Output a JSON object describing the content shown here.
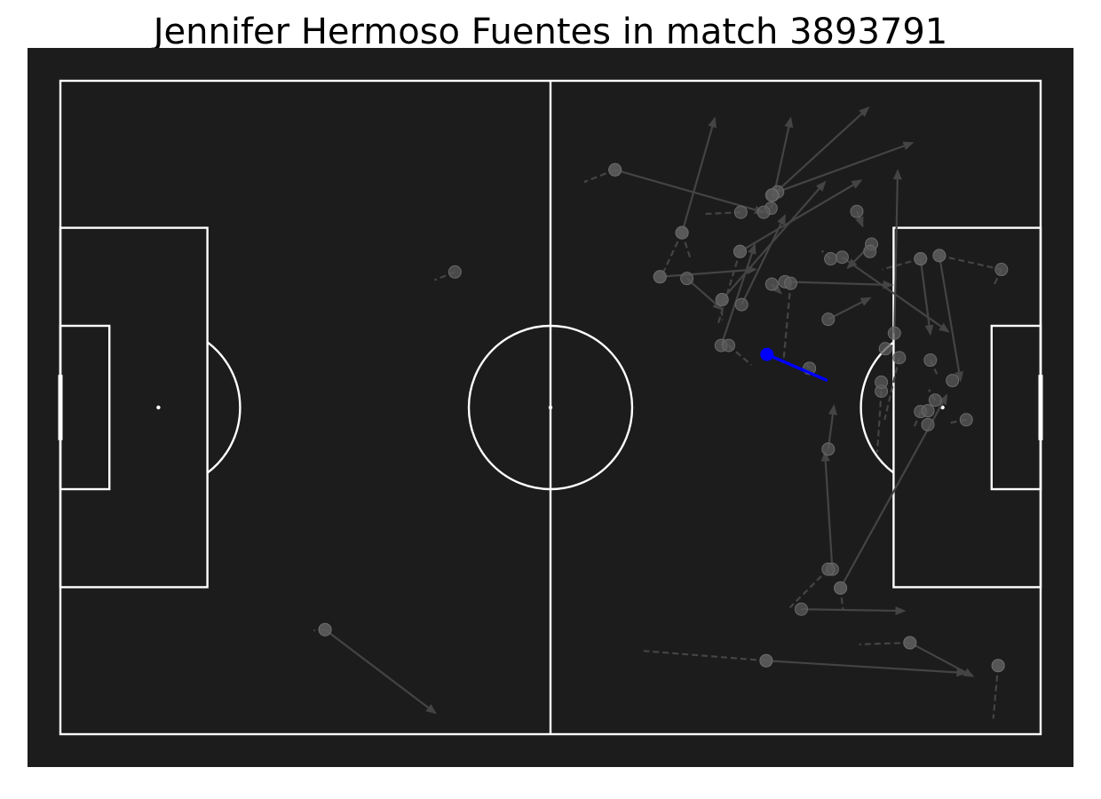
{
  "title": "Jennifer Hermoso Fuentes in match 3893791",
  "colors": {
    "pitch_background": "#1c1c1c",
    "pitch_lines": "#ffffff",
    "highlight_pass": "#0000ff",
    "other_actions": "#5a5a5a",
    "page_background": "#ffffff"
  },
  "chart_data": {
    "type": "scatter",
    "title": "Jennifer Hermoso Fuentes in match 3893791",
    "pitch": {
      "length": 120,
      "width": 80,
      "style": "dark"
    },
    "highlighted": {
      "x": 86.5,
      "y": 33.5,
      "end_x": 93.9,
      "end_y": 36.7
    },
    "passes": [
      {
        "x": 67.9,
        "y": 10.9,
        "end_x": 86.1,
        "end_y": 16.1
      },
      {
        "x": 87.8,
        "y": 13.6,
        "end_x": 104.3,
        "end_y": 7.6
      },
      {
        "x": 87.2,
        "y": 14.0,
        "end_x": 98.9,
        "end_y": 3.3
      },
      {
        "x": 87.0,
        "y": 15.6,
        "end_x": 89.4,
        "end_y": 4.6
      },
      {
        "x": 83.2,
        "y": 20.9,
        "end_x": 98.0,
        "end_y": 12.2
      },
      {
        "x": 76.1,
        "y": 18.6,
        "end_x": 80.1,
        "end_y": 4.6
      },
      {
        "x": 73.4,
        "y": 24.0,
        "end_x": 85.1,
        "end_y": 23.1
      },
      {
        "x": 76.7,
        "y": 24.2,
        "end_x": 81.0,
        "end_y": 28.0
      },
      {
        "x": 81.0,
        "y": 26.8,
        "end_x": 93.6,
        "end_y": 12.4
      },
      {
        "x": 83.4,
        "y": 27.4,
        "end_x": 88.7,
        "end_y": 16.5
      },
      {
        "x": 88.7,
        "y": 24.6,
        "end_x": 101.8,
        "end_y": 25.0
      },
      {
        "x": 95.7,
        "y": 21.6,
        "end_x": 108.7,
        "end_y": 30.7
      },
      {
        "x": 102.1,
        "y": 30.9,
        "end_x": 102.5,
        "end_y": 11.0
      },
      {
        "x": 107.6,
        "y": 21.4,
        "end_x": 110.2,
        "end_y": 36.7
      },
      {
        "x": 105.3,
        "y": 21.8,
        "end_x": 106.5,
        "end_y": 31.0
      },
      {
        "x": 99.3,
        "y": 20.0,
        "end_x": 96.4,
        "end_y": 22.9
      },
      {
        "x": 97.5,
        "y": 16.0,
        "end_x": 98.2,
        "end_y": 17.8
      },
      {
        "x": 80.9,
        "y": 32.4,
        "end_x": 85.0,
        "end_y": 20.1
      },
      {
        "x": 87.1,
        "y": 24.9,
        "end_x": 88.2,
        "end_y": 26.0
      },
      {
        "x": 94.0,
        "y": 29.2,
        "end_x": 99.1,
        "end_y": 26.6
      },
      {
        "x": 94.0,
        "y": 45.1,
        "end_x": 94.7,
        "end_y": 39.8
      },
      {
        "x": 94.5,
        "y": 59.8,
        "end_x": 93.6,
        "end_y": 45.5
      },
      {
        "x": 95.5,
        "y": 62.1,
        "end_x": 108.5,
        "end_y": 38.5
      },
      {
        "x": 90.7,
        "y": 64.7,
        "end_x": 103.3,
        "end_y": 64.9
      },
      {
        "x": 86.4,
        "y": 71.0,
        "end_x": 110.8,
        "end_y": 72.5
      },
      {
        "x": 104.0,
        "y": 68.8,
        "end_x": 111.7,
        "end_y": 72.9
      },
      {
        "x": 32.4,
        "y": 67.2,
        "end_x": 45.9,
        "end_y": 77.4
      }
    ],
    "carries": [
      {
        "x": 67.9,
        "y": 10.9,
        "end_x": 64.1,
        "end_y": 12.4
      },
      {
        "x": 48.3,
        "y": 23.4,
        "end_x": 45.8,
        "end_y": 24.4
      },
      {
        "x": 83.3,
        "y": 16.1,
        "end_x": 79.0,
        "end_y": 16.3
      },
      {
        "x": 76.1,
        "y": 18.6,
        "end_x": 73.6,
        "end_y": 23.9
      },
      {
        "x": 76.1,
        "y": 18.6,
        "end_x": 77.2,
        "end_y": 22.0
      },
      {
        "x": 81.0,
        "y": 26.8,
        "end_x": 81.0,
        "end_y": 29.3
      },
      {
        "x": 83.2,
        "y": 20.9,
        "end_x": 80.5,
        "end_y": 29.8
      },
      {
        "x": 89.4,
        "y": 24.8,
        "end_x": 88.5,
        "end_y": 34.6
      },
      {
        "x": 81.8,
        "y": 32.4,
        "end_x": 84.6,
        "end_y": 34.8
      },
      {
        "x": 91.7,
        "y": 35.2,
        "end_x": 91.0,
        "end_y": 34.2
      },
      {
        "x": 100.5,
        "y": 38.0,
        "end_x": 100.0,
        "end_y": 45.5
      },
      {
        "x": 102.7,
        "y": 33.9,
        "end_x": 100.9,
        "end_y": 41.5
      },
      {
        "x": 105.3,
        "y": 40.5,
        "end_x": 104.4,
        "end_y": 42.7
      },
      {
        "x": 107.1,
        "y": 39.1,
        "end_x": 106.3,
        "end_y": 37.8
      },
      {
        "x": 110.9,
        "y": 41.5,
        "end_x": 108.8,
        "end_y": 41.9
      },
      {
        "x": 106.5,
        "y": 34.2,
        "end_x": 107.3,
        "end_y": 35.9
      },
      {
        "x": 105.3,
        "y": 21.8,
        "end_x": 100.6,
        "end_y": 23.1
      },
      {
        "x": 107.6,
        "y": 21.4,
        "end_x": 115.2,
        "end_y": 23.1
      },
      {
        "x": 115.2,
        "y": 23.1,
        "end_x": 114.3,
        "end_y": 25.0
      },
      {
        "x": 94.3,
        "y": 21.8,
        "end_x": 93.2,
        "end_y": 20.8
      },
      {
        "x": 94.0,
        "y": 59.8,
        "end_x": 89.3,
        "end_y": 64.5
      },
      {
        "x": 95.5,
        "y": 62.1,
        "end_x": 95.8,
        "end_y": 64.7
      },
      {
        "x": 86.4,
        "y": 71.0,
        "end_x": 71.4,
        "end_y": 69.8
      },
      {
        "x": 104.0,
        "y": 68.8,
        "end_x": 97.8,
        "end_y": 69.0
      },
      {
        "x": 114.8,
        "y": 71.6,
        "end_x": 114.2,
        "end_y": 78.1
      },
      {
        "x": 32.4,
        "y": 67.2,
        "end_x": 31.0,
        "end_y": 67.3
      }
    ],
    "points": [
      {
        "x": 73.4,
        "y": 24.0
      },
      {
        "x": 86.1,
        "y": 16.1
      },
      {
        "x": 99.1,
        "y": 20.9
      },
      {
        "x": 101.0,
        "y": 32.8
      },
      {
        "x": 100.5,
        "y": 36.9
      },
      {
        "x": 109.2,
        "y": 36.7
      },
      {
        "x": 106.2,
        "y": 40.4
      },
      {
        "x": 106.2,
        "y": 42.1
      },
      {
        "x": 87.1,
        "y": 14.0
      },
      {
        "x": 114.8,
        "y": 71.6
      }
    ]
  }
}
